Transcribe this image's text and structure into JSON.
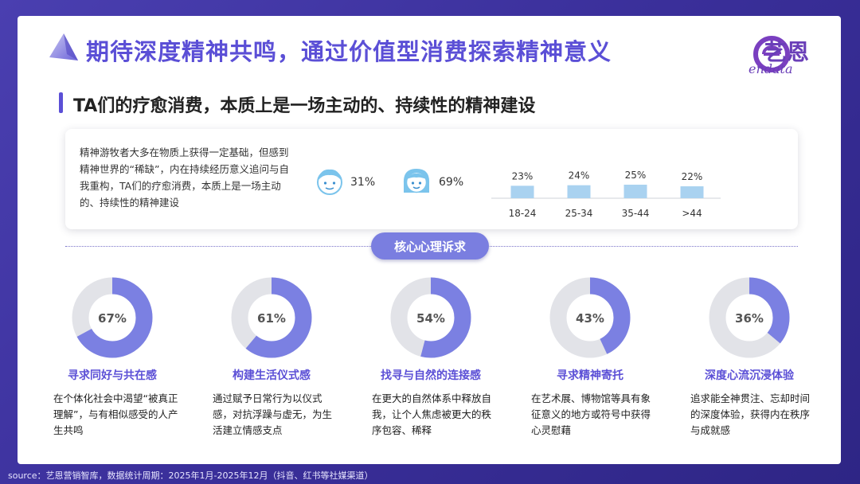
{
  "header": {
    "title": "期待深度精神共鸣，通过价值型消费探索精神意义",
    "logo_text": "艺恩",
    "logo_sub": "endata"
  },
  "subtitle": "TA们的疗愈消费，本质上是一场主动的、持续性的精神建设",
  "card": {
    "text": "精神游牧者大多在物质上获得一定基础，但感到精神世界的“稀缺”，内在持续经历意义追问与自我重构，TA们的疗愈消费，本质上是一场主动的、持续性的精神建设",
    "male_pct": "31%",
    "female_pct": "69%"
  },
  "section_pill": "核心心理诉求",
  "colors": {
    "accent": "#5b4fd6",
    "donut_fill": "#7b80e2",
    "donut_track": "#e2e3e8",
    "bar": "#a9d2f0"
  },
  "chart_data": [
    {
      "type": "bar",
      "categories": [
        "18-24",
        "25-34",
        "35-44",
        ">44"
      ],
      "values": [
        23,
        24,
        25,
        22
      ],
      "value_labels": [
        "23%",
        "24%",
        "25%",
        "22%"
      ]
    },
    {
      "type": "pie",
      "items": [
        {
          "label": "寻求同好与共在感",
          "value": 67,
          "value_label": "67%",
          "desc": "在个体化社会中渴望“被真正理解”，与有相似感受的人产生共鸣"
        },
        {
          "label": "构建生活仪式感",
          "value": 61,
          "value_label": "61%",
          "desc": "通过赋予日常行为以仪式感，对抗浮躁与虚无，为生活建立情感支点"
        },
        {
          "label": "找寻与自然的连接感",
          "value": 54,
          "value_label": "54%",
          "desc": "在更大的自然体系中释放自我，让个人焦虑被更大的秩序包容、稀释"
        },
        {
          "label": "寻求精神寄托",
          "value": 43,
          "value_label": "43%",
          "desc": "在艺术展、博物馆等具有象征意义的地方或符号中获得心灵慰藉"
        },
        {
          "label": "深度心流沉浸体验",
          "value": 36,
          "value_label": "36%",
          "desc": "追求能全神贯注、忘却时间的深度体验，获得内在秩序与成就感"
        }
      ]
    }
  ],
  "source": "source：艺恩营销智库，数据统计周期：2025年1月-2025年12月（抖音、红书等社媒渠道）"
}
